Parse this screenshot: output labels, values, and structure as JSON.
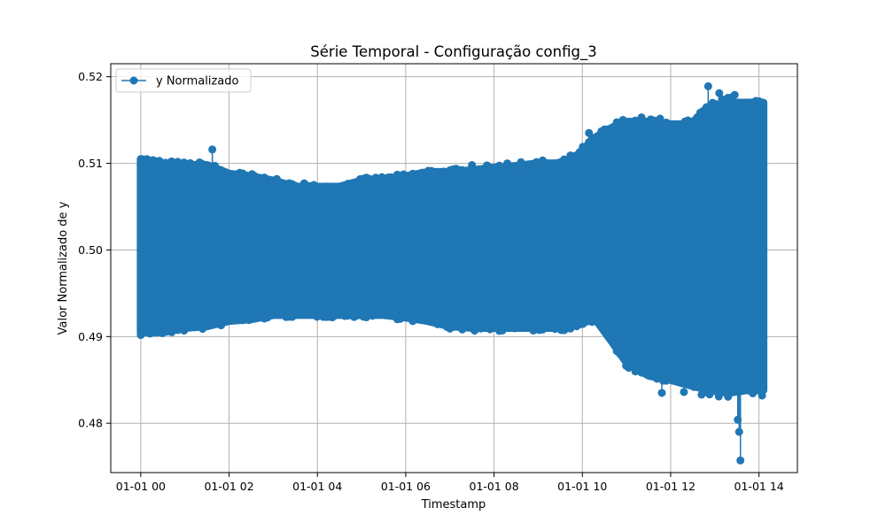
{
  "chart_data": {
    "type": "line",
    "title": "Série Temporal - Configuração config_3",
    "xlabel": "Timestamp",
    "ylabel": "Valor Normalizado de y",
    "x_ticks": [
      "01-01 00",
      "01-01 02",
      "01-01 04",
      "01-01 06",
      "01-01 08",
      "01-01 10",
      "01-01 12",
      "01-01 14"
    ],
    "y_ticks": [
      "0.48",
      "0.49",
      "0.50",
      "0.51",
      "0.52"
    ],
    "xlim_hours": [
      -0.68,
      14.87
    ],
    "ylim": [
      0.4743,
      0.5215
    ],
    "grid": true,
    "legend_position": "top-left",
    "series": [
      {
        "name": "y Normalizado",
        "color": "#1f77b4",
        "marker": "circle",
        "envelope_hours": [
          0.0,
          0.5,
          1.0,
          1.5,
          2.0,
          2.5,
          3.0,
          3.5,
          4.0,
          4.5,
          5.0,
          5.5,
          6.0,
          6.5,
          7.0,
          7.5,
          8.0,
          8.5,
          9.0,
          9.5,
          9.9,
          10.3,
          10.7,
          11.0,
          11.5,
          12.0,
          12.5,
          12.9,
          13.3,
          13.7,
          14.1
        ],
        "envelope_upper": [
          0.5105,
          0.51,
          0.5098,
          0.5098,
          0.5088,
          0.5085,
          0.508,
          0.5073,
          0.5073,
          0.5073,
          0.508,
          0.5082,
          0.5085,
          0.509,
          0.509,
          0.5092,
          0.5095,
          0.5097,
          0.51,
          0.51,
          0.511,
          0.513,
          0.5142,
          0.5148,
          0.5148,
          0.5145,
          0.5145,
          0.5165,
          0.517,
          0.517,
          0.517
        ],
        "envelope_lower": [
          0.4905,
          0.4905,
          0.491,
          0.4912,
          0.4918,
          0.492,
          0.4925,
          0.4925,
          0.4925,
          0.4925,
          0.4925,
          0.4925,
          0.4922,
          0.4918,
          0.4912,
          0.491,
          0.491,
          0.491,
          0.491,
          0.491,
          0.4915,
          0.492,
          0.4892,
          0.487,
          0.4855,
          0.485,
          0.4843,
          0.4838,
          0.4835,
          0.4838,
          0.4838
        ],
        "outliers": [
          {
            "x": 1.62,
            "y": 0.5116
          },
          {
            "x": 12.85,
            "y": 0.5189
          },
          {
            "x": 13.1,
            "y": 0.5181
          },
          {
            "x": 13.45,
            "y": 0.5179
          },
          {
            "x": 13.52,
            "y": 0.4804
          },
          {
            "x": 13.55,
            "y": 0.479
          },
          {
            "x": 13.58,
            "y": 0.4757
          },
          {
            "x": 4.7,
            "y": 0.5076
          },
          {
            "x": 3.7,
            "y": 0.5077
          },
          {
            "x": 7.5,
            "y": 0.5098
          },
          {
            "x": 8.3,
            "y": 0.51
          },
          {
            "x": 10.15,
            "y": 0.5135
          },
          {
            "x": 11.05,
            "y": 0.4864
          },
          {
            "x": 11.8,
            "y": 0.4835
          },
          {
            "x": 12.3,
            "y": 0.4836
          },
          {
            "x": 12.7,
            "y": 0.4833
          }
        ]
      }
    ]
  }
}
